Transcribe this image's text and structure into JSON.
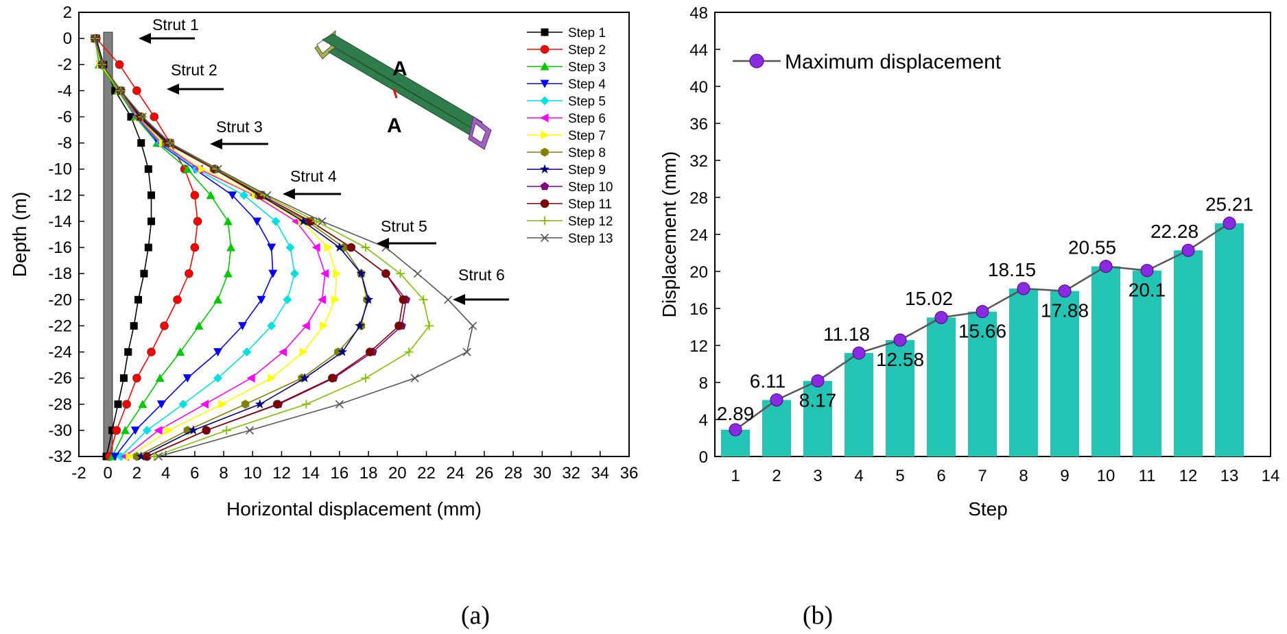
{
  "chart_data": [
    {
      "type": "line",
      "panel_label": "(a)",
      "xlabel": "Horizontal displacement (mm)",
      "ylabel": "Depth (m)",
      "xlim": [
        -2,
        36
      ],
      "ylim": [
        -32,
        2
      ],
      "xticks": [
        -2,
        0,
        2,
        4,
        6,
        8,
        10,
        12,
        14,
        16,
        18,
        20,
        22,
        24,
        26,
        28,
        30,
        32,
        34,
        36
      ],
      "yticks": [
        2,
        0,
        -2,
        -4,
        -6,
        -8,
        -10,
        -12,
        -14,
        -16,
        -18,
        -20,
        -22,
        -24,
        -26,
        -28,
        -30,
        -32
      ],
      "legend_position": "top-right",
      "depth": [
        0,
        -2,
        -4,
        -6,
        -8,
        -10,
        -12,
        -14,
        -16,
        -18,
        -20,
        -22,
        -24,
        -26,
        -28,
        -30,
        -32
      ],
      "series": [
        {
          "name": "Step 1",
          "color": "#000000",
          "marker": "square",
          "x": [
            -0.8,
            -0.3,
            0.5,
            1.6,
            2.3,
            2.8,
            3.0,
            3.0,
            2.8,
            2.5,
            2.1,
            1.8,
            1.4,
            1.1,
            0.7,
            0.3,
            -0.1
          ]
        },
        {
          "name": "Step 2",
          "color": "#ff0000",
          "marker": "circle",
          "x": [
            -0.8,
            0.8,
            2.0,
            3.2,
            4.3,
            5.3,
            6.0,
            6.2,
            6.0,
            5.6,
            4.8,
            3.9,
            3.0,
            2.0,
            1.3,
            0.6,
            0.1
          ]
        },
        {
          "name": "Step 3",
          "color": "#00c800",
          "marker": "triangle-up",
          "x": [
            -0.9,
            -0.6,
            0.7,
            1.9,
            3.4,
            5.5,
            7.1,
            8.3,
            8.5,
            8.3,
            7.6,
            6.3,
            5.0,
            3.6,
            2.4,
            1.2,
            0.3
          ]
        },
        {
          "name": "Step 4",
          "color": "#0000ff",
          "marker": "triangle-down",
          "x": [
            -0.9,
            -0.5,
            0.8,
            2.0,
            3.5,
            6.0,
            8.6,
            10.3,
            11.3,
            11.4,
            10.6,
            9.3,
            7.6,
            5.5,
            3.7,
            1.9,
            0.5
          ]
        },
        {
          "name": "Step 5",
          "color": "#00e0e0",
          "marker": "diamond",
          "x": [
            -0.9,
            -0.5,
            0.8,
            2.0,
            3.6,
            6.1,
            9.4,
            11.6,
            12.6,
            12.9,
            12.4,
            11.3,
            9.6,
            7.6,
            5.2,
            2.7,
            0.9
          ]
        },
        {
          "name": "Step 6",
          "color": "#ff00ff",
          "marker": "triangle-left",
          "x": [
            -0.9,
            -0.5,
            0.8,
            2.0,
            3.7,
            6.3,
            10.1,
            13.0,
            14.4,
            15.0,
            14.8,
            13.7,
            12.1,
            9.9,
            6.7,
            3.5,
            1.2
          ]
        },
        {
          "name": "Step 7",
          "color": "#ffff00",
          "marker": "triangle-right",
          "x": [
            -0.9,
            -0.5,
            0.8,
            2.1,
            3.8,
            6.5,
            10.2,
            13.4,
            15.2,
            15.8,
            15.7,
            14.9,
            13.5,
            11.3,
            7.9,
            4.2,
            1.5
          ]
        },
        {
          "name": "Step 8",
          "color": "#808000",
          "marker": "hexagon",
          "x": [
            -0.9,
            -0.4,
            0.8,
            2.1,
            4.0,
            7.3,
            10.4,
            13.8,
            16.3,
            17.5,
            17.9,
            17.5,
            15.9,
            13.4,
            9.5,
            5.5,
            2.0
          ]
        },
        {
          "name": "Step 9",
          "color": "#000080",
          "marker": "star",
          "x": [
            -0.9,
            -0.4,
            0.9,
            2.2,
            4.1,
            7.4,
            10.5,
            13.5,
            16.0,
            17.5,
            18.0,
            17.4,
            16.2,
            13.6,
            10.5,
            5.9,
            2.3
          ]
        },
        {
          "name": "Step 10",
          "color": "#800080",
          "marker": "pentagon",
          "x": [
            -0.9,
            -0.4,
            0.9,
            2.3,
            4.2,
            7.4,
            10.6,
            14.0,
            16.8,
            19.2,
            20.6,
            20.3,
            18.3,
            15.6,
            11.8,
            6.8,
            2.7
          ]
        },
        {
          "name": "Step 11",
          "color": "#800000",
          "marker": "circle",
          "x": [
            -0.9,
            -0.4,
            0.9,
            2.3,
            4.2,
            7.4,
            10.6,
            14.0,
            16.8,
            19.2,
            20.4,
            20.1,
            18.1,
            15.5,
            11.7,
            6.8,
            2.7
          ]
        },
        {
          "name": "Step 12",
          "color": "#80c000",
          "marker": "plus",
          "x": [
            -0.9,
            -0.4,
            0.9,
            2.4,
            4.3,
            7.5,
            10.8,
            14.4,
            17.8,
            20.2,
            21.8,
            22.2,
            20.8,
            17.8,
            13.7,
            8.2,
            3.2
          ]
        },
        {
          "name": "Step 13",
          "color": "#555555",
          "marker": "x",
          "x": [
            -0.9,
            -0.4,
            0.9,
            2.4,
            4.3,
            7.6,
            11.0,
            14.8,
            19.2,
            21.4,
            23.5,
            25.2,
            24.8,
            21.2,
            16.0,
            9.8,
            3.5
          ]
        }
      ],
      "annotations": [
        "Strut 1",
        "Strut 2",
        "Strut 3",
        "Strut 4",
        "Strut 5",
        "Strut 6"
      ],
      "inset_labels": [
        "A",
        "A"
      ]
    },
    {
      "type": "bar",
      "panel_label": "(b)",
      "xlabel": "Step",
      "ylabel": "Displacement (mm)",
      "xlim": [
        0.5,
        14
      ],
      "ylim": [
        0,
        48
      ],
      "xticks": [
        1,
        2,
        3,
        4,
        5,
        6,
        7,
        8,
        9,
        10,
        11,
        12,
        13,
        14
      ],
      "yticks": [
        0,
        4,
        8,
        12,
        16,
        20,
        24,
        28,
        32,
        36,
        40,
        44,
        48
      ],
      "bar_color": "#24c4b4",
      "line_color": "#555555",
      "marker_color": "#8a2be2",
      "categories": [
        1,
        2,
        3,
        4,
        5,
        6,
        7,
        8,
        9,
        10,
        11,
        12,
        13
      ],
      "values": [
        2.89,
        6.11,
        8.17,
        11.18,
        12.58,
        15.02,
        15.66,
        18.15,
        17.88,
        20.55,
        20.1,
        22.28,
        25.21
      ],
      "value_labels": [
        "2.89",
        "6.11",
        "8.17",
        "11.18",
        "12.58",
        "15.02",
        "15.66",
        "18.15",
        "17.88",
        "20.55",
        "20.1",
        "22.28",
        "25.21"
      ],
      "series": [
        {
          "name": "Maximum displacement"
        }
      ],
      "legend_position": "top-left"
    }
  ]
}
